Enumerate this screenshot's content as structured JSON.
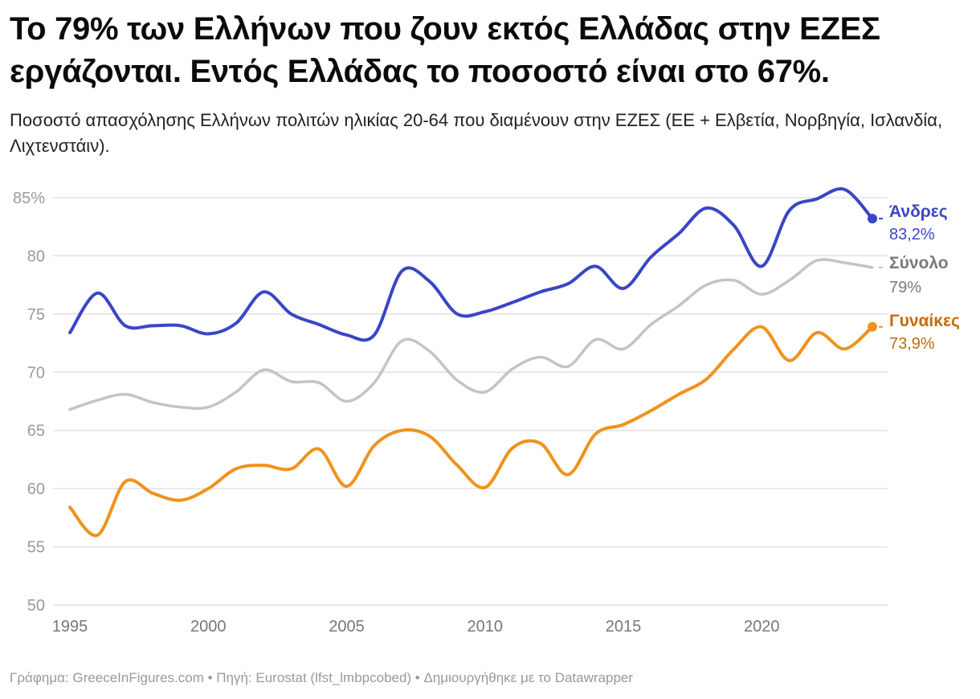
{
  "header": {
    "title": "Το 79% των Ελλήνων που ζουν εκτός Ελλάδας στην ΕΖΕΣ εργάζονται. Εντός Ελλάδας το ποσοστό είναι στο 67%.",
    "subtitle": "Ποσοστό απασχόλησης Ελλήνων πολιτών ηλικίας 20-64 που διαμένουν στην ΕΖΕΣ (ΕΕ + Ελβετία, Νορβηγία, Ισλανδία, Λιχτενστάιν)."
  },
  "footer": {
    "text": "Γράφημα: GreeceInFigures.com • Πηγή: Eurostat (lfst_lmbpcobed) • Δημιουργήθηκε με το Datawrapper"
  },
  "chart_data": {
    "type": "line",
    "title": "Το 79% των Ελλήνων που ζουν εκτός Ελλάδας στην ΕΖΕΣ εργάζονται. Εντός Ελλάδας το ποσοστό είναι στο 67%.",
    "xlabel": "",
    "ylabel": "",
    "ylim": [
      50,
      85
    ],
    "xlim": [
      1995,
      2024
    ],
    "grid": true,
    "y_ticks": [
      50,
      55,
      60,
      65,
      70,
      75,
      80,
      85
    ],
    "y_tick_labels": [
      "50",
      "55",
      "60",
      "65",
      "70",
      "75",
      "80",
      "85%"
    ],
    "x_ticks": [
      1995,
      2000,
      2005,
      2010,
      2015,
      2020
    ],
    "x_tick_labels": [
      "1995",
      "2000",
      "2005",
      "2010",
      "2015",
      "2020"
    ],
    "x": [
      1995,
      1996,
      1997,
      1998,
      1999,
      2000,
      2001,
      2002,
      2003,
      2004,
      2005,
      2006,
      2007,
      2008,
      2009,
      2010,
      2011,
      2012,
      2013,
      2014,
      2015,
      2016,
      2017,
      2018,
      2019,
      2020,
      2021,
      2022,
      2023,
      2024
    ],
    "legend": "direct-labels-right",
    "series": [
      {
        "name": "Άνδρες",
        "end_label": "83,2%",
        "color": "#3a46c6",
        "label_color": "#3a46c6",
        "end_marker": true,
        "values": [
          73.4,
          76.8,
          74.0,
          74.0,
          74.0,
          73.3,
          74.2,
          76.9,
          75.0,
          74.1,
          73.2,
          73.2,
          78.7,
          77.8,
          75.0,
          75.2,
          76.0,
          76.9,
          77.6,
          79.1,
          77.2,
          79.9,
          81.9,
          84.1,
          82.6,
          79.1,
          83.9,
          84.9,
          85.7,
          83.2
        ]
      },
      {
        "name": "Σύνολο",
        "end_label": "79%",
        "color": "#c4c4c4",
        "label_color": "#7a7a7a",
        "end_marker": false,
        "values": [
          66.8,
          67.6,
          68.1,
          67.4,
          67.0,
          67.0,
          68.3,
          70.2,
          69.2,
          69.1,
          67.5,
          69.1,
          72.7,
          71.8,
          69.3,
          68.3,
          70.3,
          71.3,
          70.5,
          72.8,
          72.0,
          74.1,
          75.7,
          77.5,
          77.9,
          76.7,
          77.9,
          79.6,
          79.4,
          79.0
        ]
      },
      {
        "name": "Γυναίκες",
        "end_label": "73,9%",
        "color": "#f0921c",
        "label_color": "#c46a0a",
        "end_marker": true,
        "values": [
          58.4,
          56.0,
          60.6,
          59.6,
          59.0,
          60.0,
          61.7,
          62.0,
          61.7,
          63.4,
          60.2,
          63.7,
          65.0,
          64.5,
          62.0,
          60.1,
          63.5,
          63.9,
          61.2,
          64.7,
          65.5,
          66.7,
          68.1,
          69.4,
          72.0,
          73.9,
          71.0,
          73.4,
          72.0,
          73.9
        ]
      }
    ]
  }
}
